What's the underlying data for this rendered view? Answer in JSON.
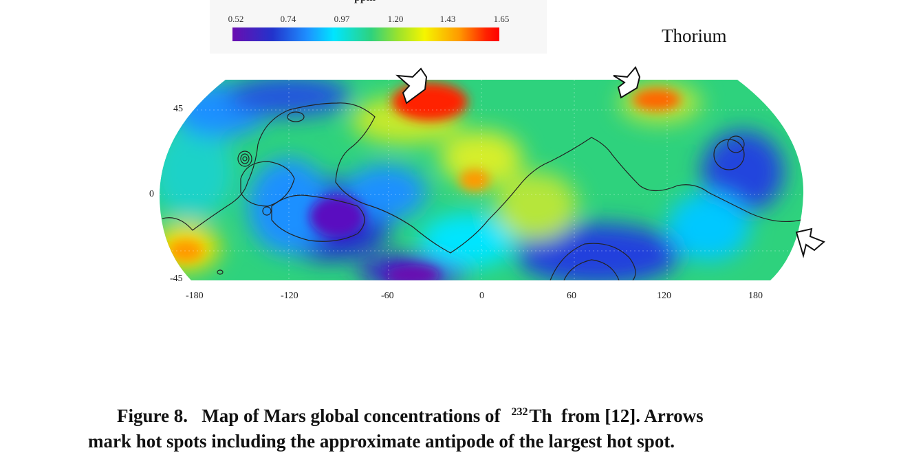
{
  "figure": {
    "title": "Thorium",
    "colorbar": {
      "unit": "ppm",
      "ticks": [
        "0.52",
        "0.74",
        "0.97",
        "1.20",
        "1.43",
        "1.65"
      ],
      "colors": [
        "#6a0db0",
        "#2233cc",
        "#1e90ff",
        "#00e5ff",
        "#2ed27d",
        "#9be22d",
        "#f5f500",
        "#ff9900",
        "#ff0000"
      ]
    },
    "axes": {
      "x_ticks": [
        "-180",
        "-120",
        "-60",
        "0",
        "60",
        "120",
        "180"
      ],
      "y_ticks": [
        "45",
        "0",
        "-45"
      ]
    },
    "arrows": [
      "hot-spot-arrow",
      "hot-spot-arrow",
      "antipode-arrow"
    ]
  },
  "caption": {
    "label": "Figure 8.",
    "text_before": "Map of Mars global concentrations of",
    "isotope_mass": "232",
    "element": "Th",
    "text_after": "from [12]. Arrows",
    "line2": "mark hot spots including the approximate antipode of the largest hot spot."
  }
}
